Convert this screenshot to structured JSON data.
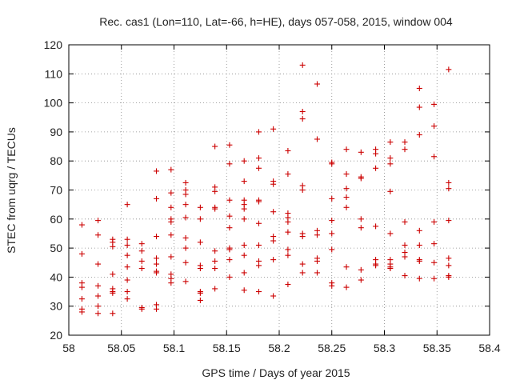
{
  "chart_data": {
    "type": "scatter",
    "title": "Rec. cas1 (Lon=110, Lat=-66, h=HE), days 057-058, 2015, window 004",
    "xlabel": "GPS time / Days of year 2015",
    "ylabel": "STEC from uqrg / TECUs",
    "xlim": [
      58,
      58.4
    ],
    "ylim": [
      20,
      120
    ],
    "x_ticks": [
      58,
      58.05,
      58.1,
      58.15,
      58.2,
      58.25,
      58.3,
      58.35,
      58.4
    ],
    "x_tick_labels": [
      "58",
      "58.05",
      "58.1",
      "58.15",
      "58.2",
      "58.25",
      "58.3",
      "58.35",
      "58.4"
    ],
    "y_ticks": [
      20,
      30,
      40,
      50,
      60,
      70,
      80,
      90,
      100,
      110,
      120
    ],
    "y_tick_labels": [
      "20",
      "30",
      "40",
      "50",
      "60",
      "70",
      "80",
      "90",
      "100",
      "110",
      "120"
    ],
    "grid": true,
    "marker": "plus",
    "color": "#cc0000",
    "series": [
      {
        "x": [
          58.0125,
          58.0125,
          58.0125,
          58.0125,
          58.0125,
          58.0125,
          58.0125,
          58.0278,
          58.0278,
          58.0278,
          58.0278,
          58.0278,
          58.0278,
          58.0278,
          58.0417,
          58.0417,
          58.0417,
          58.0417,
          58.0417,
          58.0417,
          58.0417,
          58.0417,
          58.0556,
          58.0556,
          58.0556,
          58.0556,
          58.0556,
          58.0556,
          58.0556,
          58.0556,
          58.0694,
          58.0694,
          58.0694,
          58.0694,
          58.0694,
          58.0694,
          58.0833,
          58.0833,
          58.0833,
          58.0833,
          58.0833,
          58.0833,
          58.0833,
          58.0833,
          58.0833,
          58.0972,
          58.0972,
          58.0972,
          58.0972,
          58.0972,
          58.0972,
          58.0972,
          58.0972,
          58.0972,
          58.0972,
          58.1111,
          58.1111,
          58.1111,
          58.1111,
          58.1111,
          58.1111,
          58.1111,
          58.1111,
          58.1111,
          58.125,
          58.125,
          58.125,
          58.125,
          58.125,
          58.125,
          58.125,
          58.125,
          58.1389,
          58.1389,
          58.1389,
          58.1389,
          58.1389,
          58.1389,
          58.1389,
          58.1389,
          58.1389,
          58.1528,
          58.1528,
          58.1528,
          58.1528,
          58.1528,
          58.1528,
          58.1528,
          58.1528,
          58.1528,
          58.1667,
          58.1667,
          58.1667,
          58.1667,
          58.1667,
          58.1667,
          58.1667,
          58.1667,
          58.1667,
          58.1667,
          58.1806,
          58.1806,
          58.1806,
          58.1806,
          58.1806,
          58.1806,
          58.1806,
          58.1806,
          58.1806,
          58.1806,
          58.1944,
          58.1944,
          58.1944,
          58.1944,
          58.1944,
          58.1944,
          58.1944,
          58.1944,
          58.2083,
          58.2083,
          58.2083,
          58.2083,
          58.2083,
          58.2083,
          58.2083,
          58.2083,
          58.2083,
          58.2222,
          58.2222,
          58.2222,
          58.2222,
          58.2222,
          58.2222,
          58.2222,
          58.2222,
          58.2222,
          58.2361,
          58.2361,
          58.2361,
          58.2361,
          58.2361,
          58.2361,
          58.2361,
          58.25,
          58.25,
          58.25,
          58.25,
          58.25,
          58.25,
          58.25,
          58.25,
          58.2639,
          58.2639,
          58.2639,
          58.2639,
          58.2639,
          58.2639,
          58.2639,
          58.2778,
          58.2778,
          58.2778,
          58.2778,
          58.2778,
          58.2778,
          58.2778,
          58.2917,
          58.2917,
          58.2917,
          58.2917,
          58.2917,
          58.2917,
          58.2917,
          58.3056,
          58.3056,
          58.3056,
          58.3056,
          58.3056,
          58.3056,
          58.3056,
          58.3056,
          58.3056,
          58.3194,
          58.3194,
          58.3194,
          58.3194,
          58.3194,
          58.3194,
          58.3194,
          58.3333,
          58.3333,
          58.3333,
          58.3333,
          58.3333,
          58.3333,
          58.3333,
          58.3333,
          58.3472,
          58.3472,
          58.3472,
          58.3472,
          58.3472,
          58.3472,
          58.3472,
          58.3611,
          58.3611,
          58.3611,
          58.3611,
          58.3611,
          58.3611,
          58.3611,
          58.3611
        ],
        "y": [
          58,
          48,
          38,
          36.5,
          32.5,
          29,
          28,
          59.5,
          54.5,
          44.5,
          37,
          33.5,
          30,
          27.5,
          53,
          52,
          50.5,
          41,
          36,
          35,
          34.5,
          27.5,
          65,
          53,
          51,
          47.5,
          43.5,
          39,
          35,
          32.5,
          51.5,
          49,
          45.5,
          43,
          29.5,
          29,
          76.5,
          67,
          54,
          46.5,
          44.5,
          42,
          41.5,
          30.5,
          29,
          77,
          69,
          64,
          60,
          59,
          54.5,
          47,
          41,
          39.5,
          38,
          72.5,
          70,
          68.5,
          65,
          60.5,
          53.5,
          50,
          45,
          38.5,
          64,
          60,
          52,
          44,
          43,
          35,
          34.5,
          32,
          85,
          71,
          69.5,
          64,
          63.5,
          49,
          45.5,
          43,
          36,
          85.5,
          79,
          66.5,
          61,
          57,
          50,
          49.5,
          46,
          40,
          80,
          73,
          66.5,
          65,
          63.5,
          60,
          51,
          47.5,
          41.5,
          35.5,
          90,
          81,
          77.5,
          66.5,
          66,
          58.5,
          51,
          45.5,
          44,
          35,
          91,
          73,
          72,
          62.5,
          54,
          52.5,
          46,
          33.5,
          83.5,
          75.5,
          62,
          60.5,
          59,
          55.5,
          49.5,
          47.5,
          37.5,
          113,
          97,
          94.5,
          71.5,
          70,
          55,
          54,
          44.5,
          41.5,
          106.5,
          87.5,
          56,
          54.5,
          46.5,
          45.5,
          41.5,
          79.5,
          79,
          67,
          59.5,
          55,
          49.5,
          38,
          37,
          84,
          75.5,
          70.5,
          67.5,
          64,
          43.5,
          36.5,
          83,
          74.5,
          74,
          60,
          57,
          42.5,
          39,
          84,
          82.5,
          77.5,
          57.5,
          46,
          44.5,
          44,
          86.5,
          81,
          79,
          69.5,
          55,
          46,
          44.5,
          43.5,
          43,
          86.5,
          84,
          59,
          51,
          48.5,
          47,
          40.5,
          105,
          98.5,
          89,
          56,
          51,
          46,
          45.5,
          39.5,
          99.5,
          92,
          81.5,
          59,
          51.5,
          45,
          39.5,
          111.5,
          72.5,
          70.5,
          59.5,
          46.5,
          44,
          40.5,
          40
        ]
      }
    ]
  }
}
